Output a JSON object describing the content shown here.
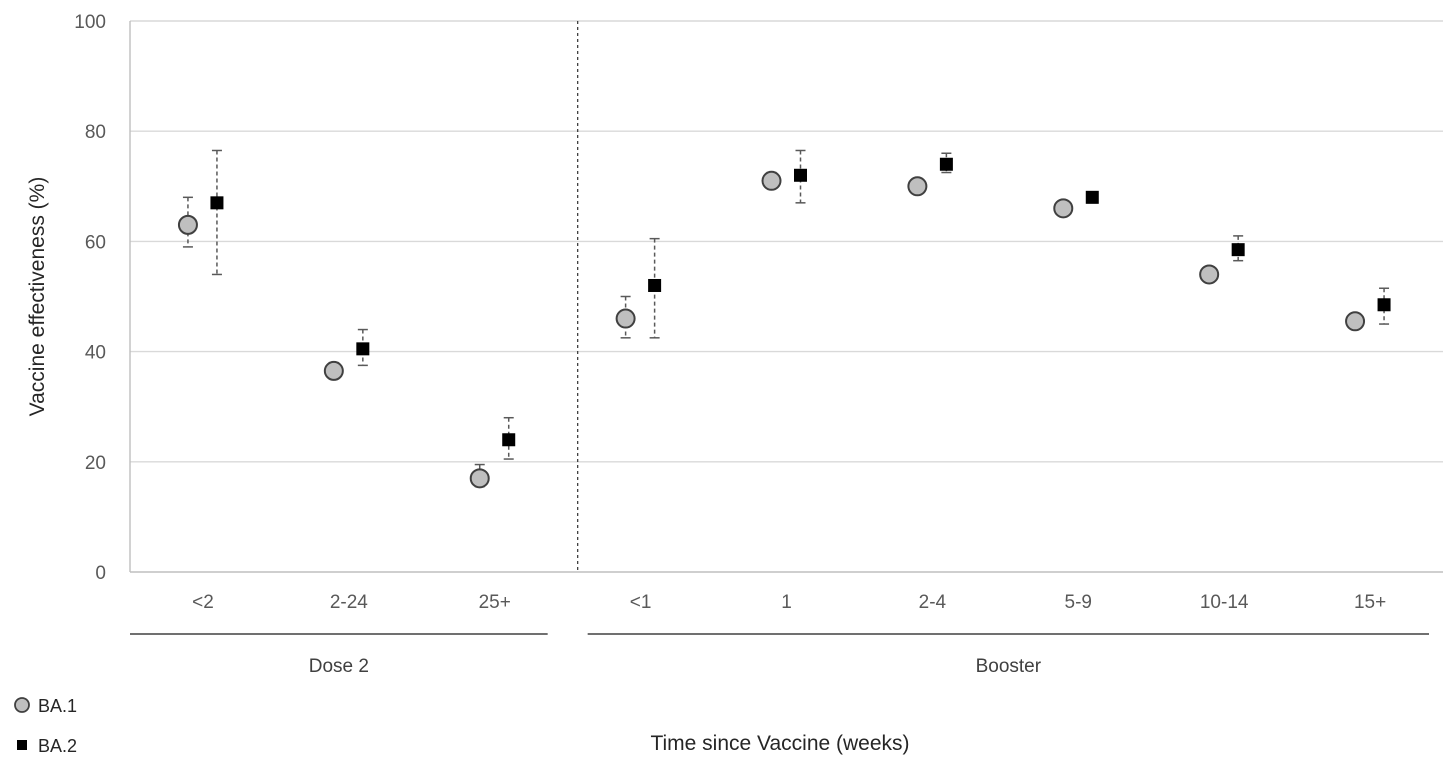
{
  "chart_data": {
    "type": "scatter",
    "title": "",
    "xlabel": "Time since Vaccine (weeks)",
    "ylabel": "Vaccine effectiveness (%)",
    "ylim": [
      0,
      100
    ],
    "yticks": [
      0,
      20,
      40,
      60,
      80,
      100
    ],
    "grid": true,
    "categories": [
      "<2",
      "2-24",
      "25+",
      "<1",
      "1",
      "2-4",
      "5-9",
      "10-14",
      "15+"
    ],
    "groups": [
      {
        "label": "Dose 2",
        "categories": [
          "<2",
          "2-24",
          "25+"
        ]
      },
      {
        "label": "Booster",
        "categories": [
          "<1",
          "1",
          "2-4",
          "5-9",
          "10-14",
          "15+"
        ]
      }
    ],
    "legend_position": "bottom-left",
    "series": [
      {
        "name": "BA.1",
        "marker": "circle",
        "color": "#bfbfbf",
        "values": [
          63,
          36.5,
          17,
          46,
          71,
          70,
          66,
          54,
          45.5
        ],
        "lower": [
          59,
          35.5,
          15.5,
          42.5,
          70,
          69.5,
          65.5,
          53.5,
          44.5
        ],
        "upper": [
          68,
          38,
          19.5,
          50,
          72.5,
          70.5,
          66.5,
          54.5,
          46.5
        ]
      },
      {
        "name": "BA.2",
        "marker": "square",
        "color": "#000000",
        "values": [
          67,
          40.5,
          24,
          52,
          72,
          74,
          68,
          58.5,
          48.5
        ],
        "lower": [
          54,
          37.5,
          20.5,
          42.5,
          67,
          72.5,
          67,
          56.5,
          45
        ],
        "upper": [
          76.5,
          44,
          28,
          60.5,
          76.5,
          76,
          69,
          61,
          51.5
        ]
      }
    ]
  }
}
